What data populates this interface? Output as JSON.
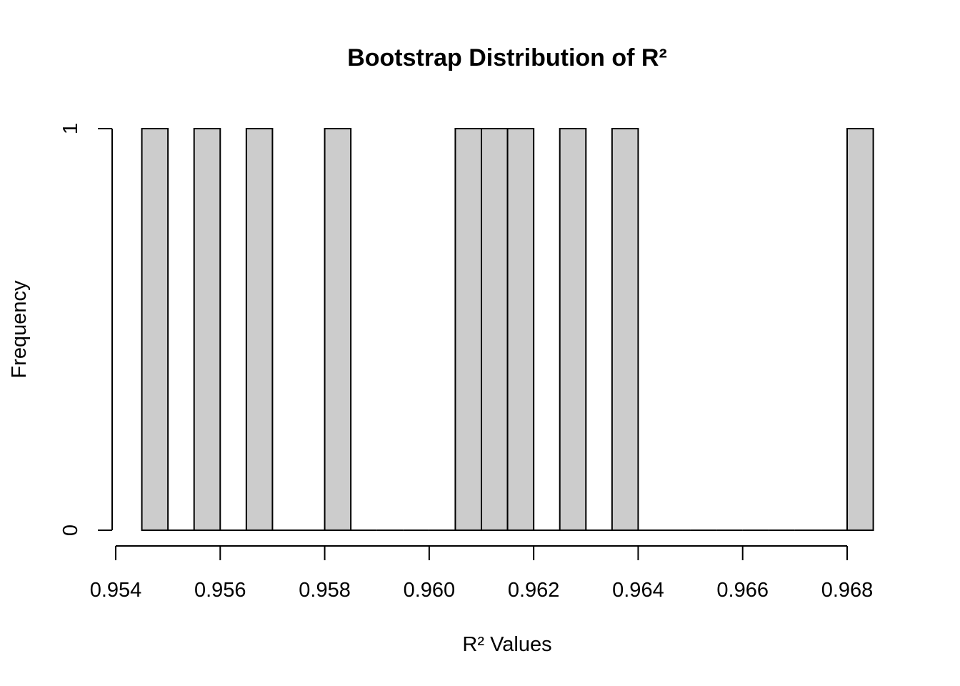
{
  "chart_data": {
    "type": "bar",
    "title": "Bootstrap Distribution of R²",
    "xlabel": "R² Values",
    "ylabel": "Frequency",
    "bin_width": 0.0005,
    "xlim": [
      0.954,
      0.9685
    ],
    "ylim": [
      0,
      1
    ],
    "x_ticks": [
      0.954,
      0.956,
      0.958,
      0.96,
      0.962,
      0.964,
      0.966,
      0.968
    ],
    "x_tick_labels": [
      "0.954",
      "0.956",
      "0.958",
      "0.960",
      "0.962",
      "0.964",
      "0.966",
      "0.968"
    ],
    "y_ticks": [
      0,
      1
    ],
    "y_tick_labels": [
      "0",
      "1"
    ],
    "bins": [
      {
        "start": 0.9545,
        "end": 0.955,
        "count": 1
      },
      {
        "start": 0.955,
        "end": 0.9555,
        "count": 0
      },
      {
        "start": 0.9555,
        "end": 0.956,
        "count": 1
      },
      {
        "start": 0.956,
        "end": 0.9565,
        "count": 0
      },
      {
        "start": 0.9565,
        "end": 0.957,
        "count": 1
      },
      {
        "start": 0.957,
        "end": 0.9575,
        "count": 0
      },
      {
        "start": 0.9575,
        "end": 0.958,
        "count": 0
      },
      {
        "start": 0.958,
        "end": 0.9585,
        "count": 1
      },
      {
        "start": 0.9585,
        "end": 0.959,
        "count": 0
      },
      {
        "start": 0.959,
        "end": 0.9595,
        "count": 0
      },
      {
        "start": 0.9595,
        "end": 0.96,
        "count": 0
      },
      {
        "start": 0.96,
        "end": 0.9605,
        "count": 0
      },
      {
        "start": 0.9605,
        "end": 0.961,
        "count": 1
      },
      {
        "start": 0.961,
        "end": 0.9615,
        "count": 1
      },
      {
        "start": 0.9615,
        "end": 0.962,
        "count": 1
      },
      {
        "start": 0.962,
        "end": 0.9625,
        "count": 0
      },
      {
        "start": 0.9625,
        "end": 0.963,
        "count": 1
      },
      {
        "start": 0.963,
        "end": 0.9635,
        "count": 0
      },
      {
        "start": 0.9635,
        "end": 0.964,
        "count": 1
      },
      {
        "start": 0.964,
        "end": 0.9645,
        "count": 0
      },
      {
        "start": 0.9645,
        "end": 0.965,
        "count": 0
      },
      {
        "start": 0.965,
        "end": 0.9655,
        "count": 0
      },
      {
        "start": 0.9655,
        "end": 0.966,
        "count": 0
      },
      {
        "start": 0.966,
        "end": 0.9665,
        "count": 0
      },
      {
        "start": 0.9665,
        "end": 0.967,
        "count": 0
      },
      {
        "start": 0.967,
        "end": 0.9675,
        "count": 0
      },
      {
        "start": 0.9675,
        "end": 0.968,
        "count": 0
      },
      {
        "start": 0.968,
        "end": 0.9685,
        "count": 1
      }
    ],
    "colors": {
      "bar_fill": "#cccccc",
      "bar_stroke": "#000000",
      "axis": "#000000",
      "text": "#000000",
      "background": "#ffffff"
    },
    "grid": false
  }
}
